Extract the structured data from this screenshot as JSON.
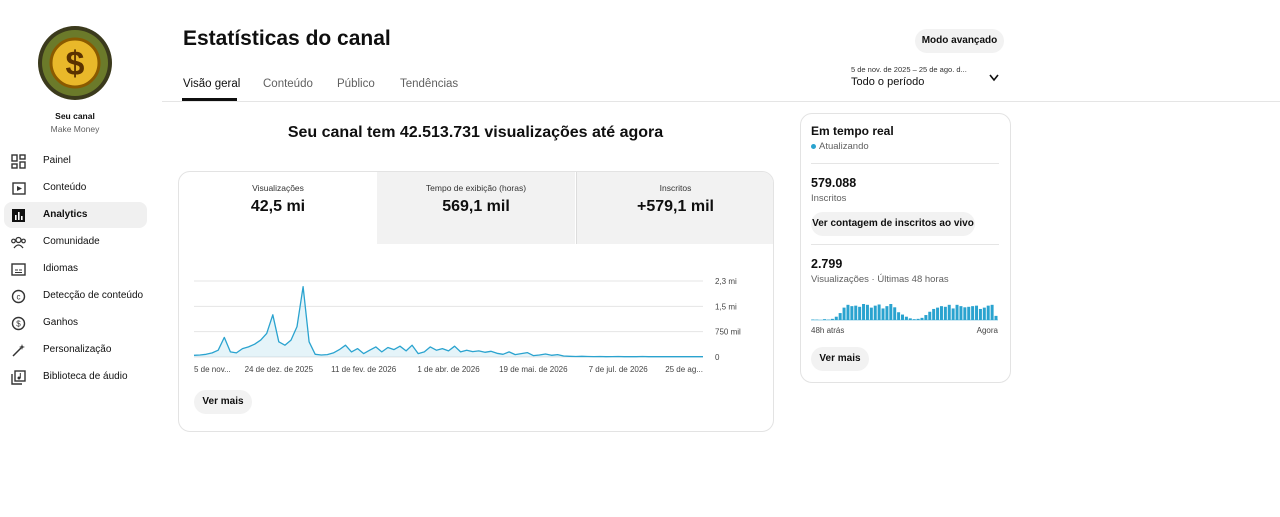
{
  "sidebar": {
    "channel_name": "Seu canal",
    "channel_subtitle": "Make Money",
    "nav": [
      "Painel",
      "Conteúdo",
      "Analytics",
      "Comunidade",
      "Idiomas",
      "Detecção de conteúdo",
      "Ganhos",
      "Personalização",
      "Biblioteca de áudio"
    ]
  },
  "header": {
    "title": "Estatísticas do canal",
    "tabs": [
      "Visão geral",
      "Conteúdo",
      "Público",
      "Tendências"
    ],
    "advanced_button": "Modo avançado",
    "date_range": "5 de nov. de 2025 – 25 de ago. d...",
    "period": "Todo o período"
  },
  "overview": {
    "headline": "Seu canal tem 42.513.731 visualizações até agora",
    "metrics": [
      {
        "label": "Visualizações",
        "value": "42,5 mi"
      },
      {
        "label": "Tempo de exibição (horas)",
        "value": "569,1 mil"
      },
      {
        "label": "Inscritos",
        "value": "+579,1 mil"
      }
    ],
    "see_more": "Ver mais"
  },
  "realtime": {
    "title": "Em tempo real",
    "status": "Atualizando",
    "subscribers_value": "579.088",
    "subscribers_label": "Inscritos",
    "live_count_button": "Ver contagem de inscritos ao vivo",
    "views_value": "2.799",
    "views_label": "Visualizações · Últimas 48 horas",
    "see_more": "Ver mais"
  },
  "chart_data": [
    {
      "type": "line",
      "color": "#2aa3cf",
      "grid": true,
      "categories": [
        "5 de nov...",
        null,
        null,
        null,
        null,
        null,
        null,
        null,
        null,
        null,
        null,
        null,
        null,
        null,
        "24 de dez. de 2025",
        null,
        null,
        null,
        null,
        null,
        null,
        null,
        null,
        null,
        null,
        null,
        null,
        null,
        "11 de fev. de 2026",
        null,
        null,
        null,
        null,
        null,
        null,
        null,
        null,
        null,
        null,
        null,
        null,
        null,
        "1 de abr. de 2026",
        null,
        null,
        null,
        null,
        null,
        null,
        null,
        null,
        null,
        null,
        null,
        null,
        null,
        "19 de mai. de 2026",
        null,
        null,
        null,
        null,
        null,
        null,
        null,
        null,
        null,
        null,
        null,
        null,
        null,
        "7 de jul. de 2026",
        null,
        null,
        null,
        null,
        null,
        null,
        null,
        null,
        null,
        null,
        null,
        null,
        null,
        "25 de ag..."
      ],
      "values": [
        50000,
        60000,
        80000,
        120000,
        200000,
        580000,
        150000,
        120000,
        250000,
        300000,
        380000,
        500000,
        700000,
        1250000,
        450000,
        350000,
        500000,
        900000,
        2080000,
        450000,
        80000,
        60000,
        70000,
        120000,
        220000,
        350000,
        150000,
        250000,
        100000,
        200000,
        300000,
        150000,
        280000,
        220000,
        320000,
        180000,
        350000,
        100000,
        150000,
        300000,
        200000,
        250000,
        180000,
        320000,
        150000,
        200000,
        160000,
        180000,
        140000,
        170000,
        110000,
        80000,
        150000,
        70000,
        100000,
        130000,
        40000,
        60000,
        90000,
        50000,
        70000,
        30000,
        20000,
        15000,
        20000,
        15000,
        12000,
        15000,
        10000,
        12000,
        15000,
        10000,
        12000,
        10000,
        15000,
        10000,
        12000,
        10000,
        10000,
        12000,
        10000,
        10000,
        12000,
        10000,
        10000
      ],
      "ylim": [
        0,
        2250000
      ],
      "yticks": [
        0,
        {
          "value": 750000,
          "label": "750 mil"
        },
        {
          "value": 1500000,
          "label": "1,5 mi"
        },
        {
          "value": 2250000,
          "label": "2,3 mi"
        }
      ]
    },
    {
      "type": "bar",
      "color": "#2aa3cf",
      "categories": [
        "48h atrás",
        null,
        null,
        null,
        null,
        null,
        null,
        null,
        null,
        null,
        null,
        null,
        null,
        null,
        null,
        null,
        null,
        null,
        null,
        null,
        null,
        null,
        null,
        null,
        null,
        null,
        null,
        null,
        null,
        null,
        null,
        null,
        null,
        null,
        null,
        null,
        null,
        null,
        null,
        null,
        null,
        null,
        null,
        null,
        null,
        null,
        null,
        "Agora"
      ],
      "values": [
        3,
        2,
        0,
        5,
        2,
        7,
        20,
        42,
        75,
        92,
        84,
        87,
        80,
        97,
        92,
        75,
        87,
        94,
        70,
        84,
        97,
        77,
        47,
        33,
        20,
        10,
        5,
        7,
        13,
        30,
        50,
        67,
        75,
        84,
        80,
        92,
        70,
        92,
        84,
        77,
        80,
        84,
        87,
        67,
        75,
        87,
        92,
        25
      ]
    }
  ]
}
